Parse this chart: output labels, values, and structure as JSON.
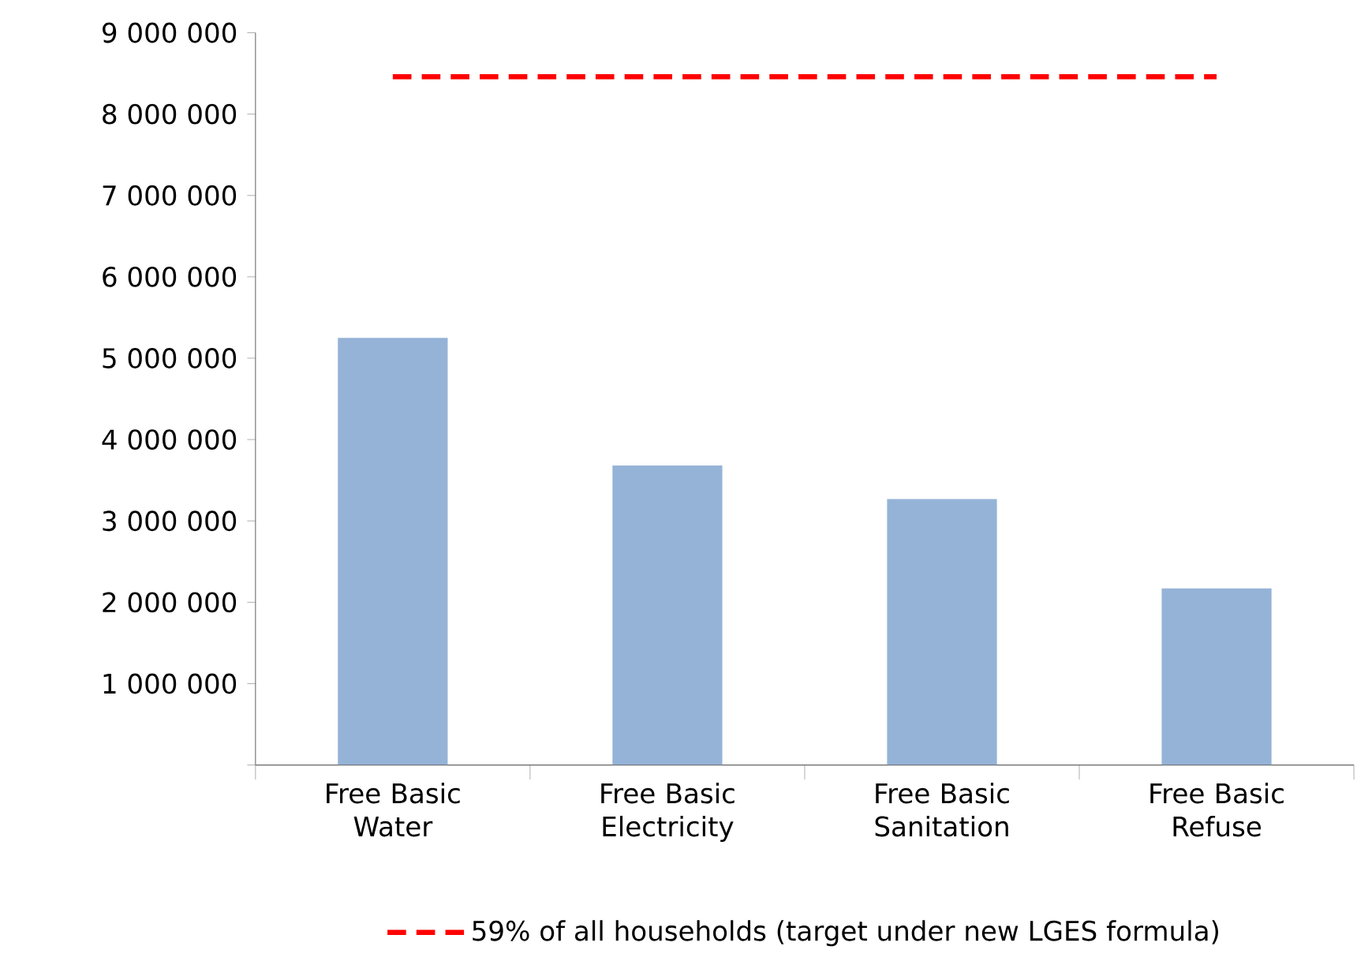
{
  "chart_data": {
    "type": "bar",
    "categories": [
      "Free Basic Water",
      "Free Basic Electricity",
      "Free Basic Sanitation",
      "Free Basic Refuse"
    ],
    "values": [
      5250000,
      3680000,
      3270000,
      2170000
    ],
    "color": "#95b3d7",
    "ylim": [
      0,
      9000000
    ],
    "yticks": [
      {
        "value": 0,
        "label": null
      },
      {
        "value": 1000000,
        "label": "1 000 000"
      },
      {
        "value": 2000000,
        "label": "2 000 000"
      },
      {
        "value": 3000000,
        "label": "3 000 000"
      },
      {
        "value": 4000000,
        "label": "4 000 000"
      },
      {
        "value": 5000000,
        "label": "5 000 000"
      },
      {
        "value": 6000000,
        "label": "6 000 000"
      },
      {
        "value": 7000000,
        "label": "7 000 000"
      },
      {
        "value": 8000000,
        "label": "8 000 000"
      },
      {
        "value": 9000000,
        "label": "9 000 000"
      }
    ],
    "ref_lines": [
      {
        "axis": "y",
        "value": 8460000,
        "label": "59%  of all households (target under new LGES formula)",
        "color": "#ff0000",
        "line_style": "dashed"
      }
    ],
    "grid": false,
    "legend": "bottom"
  }
}
